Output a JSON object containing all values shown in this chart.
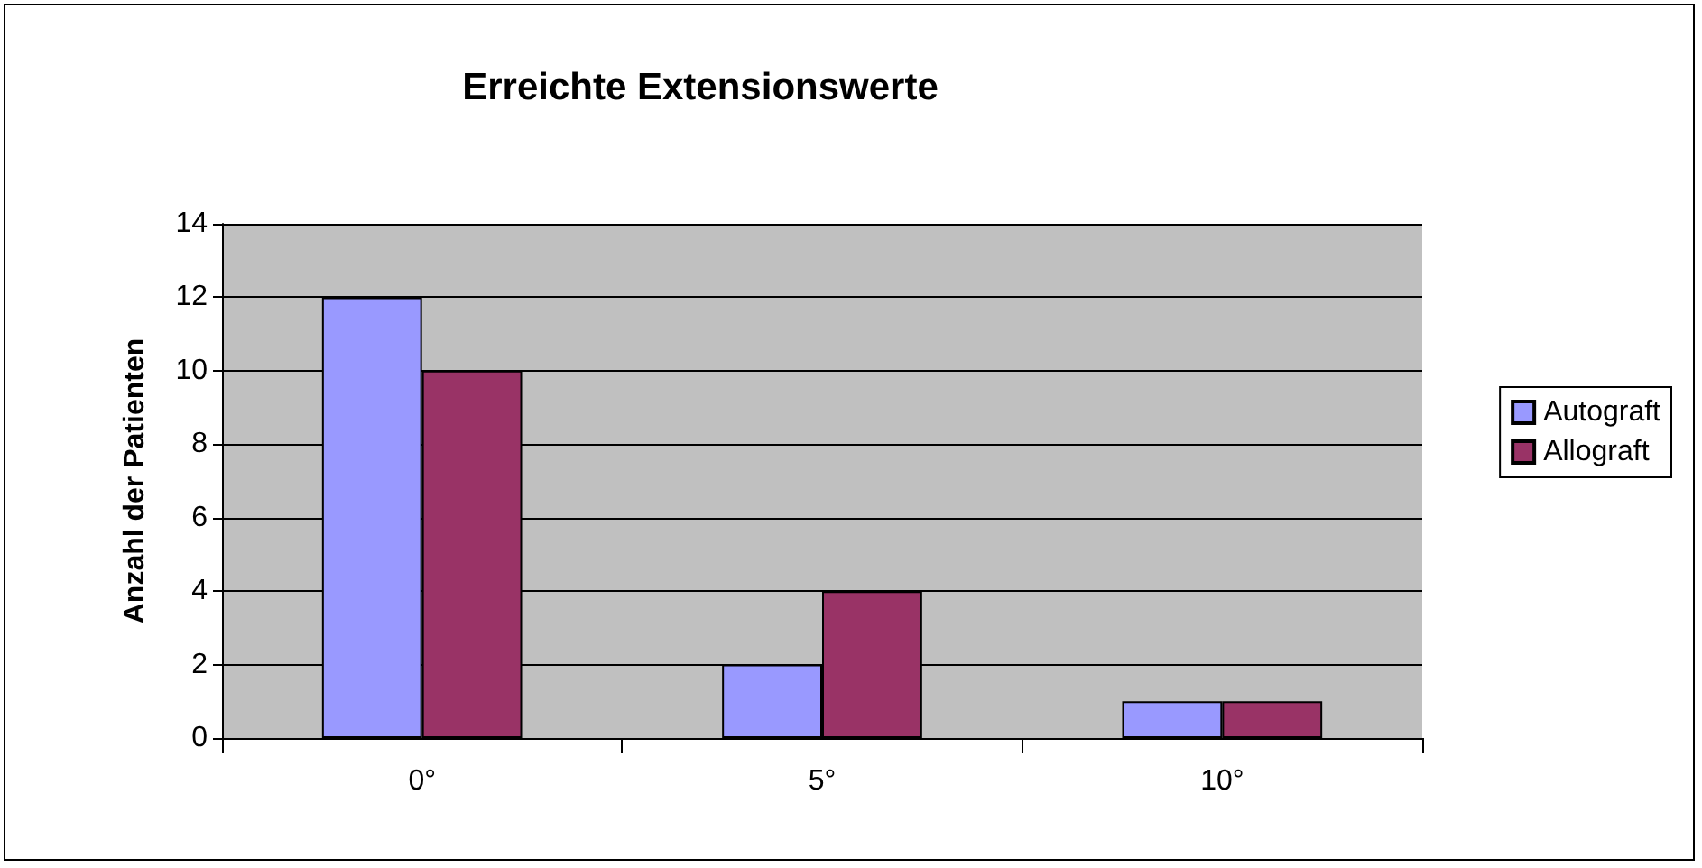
{
  "chart_data": {
    "type": "bar",
    "title": "Erreichte Extensionswerte",
    "ylabel": "Anzahl der Patienten",
    "categories": [
      "0°",
      "5°",
      "10°"
    ],
    "series": [
      {
        "name": "Autograft",
        "color": "#9999ff",
        "values": [
          12,
          2,
          1
        ]
      },
      {
        "name": "Allograft",
        "color": "#993366",
        "values": [
          10,
          4,
          1
        ]
      }
    ],
    "ylim": [
      0,
      14
    ],
    "yticks": [
      0,
      2,
      4,
      6,
      8,
      10,
      12,
      14
    ],
    "grid": "y",
    "legend": "right"
  }
}
